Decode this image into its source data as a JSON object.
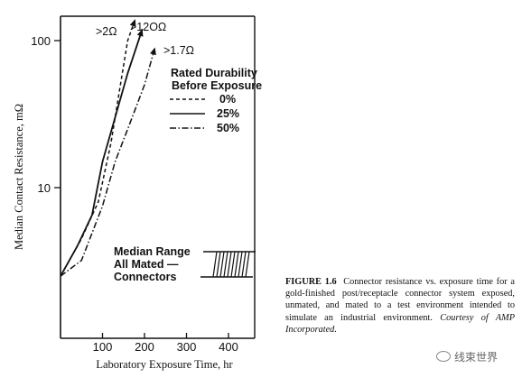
{
  "chart_data": {
    "type": "line",
    "ylabel": "Median Contact Resistance, mΩ",
    "xlabel": "Laboratory Exposure Time, hr",
    "yscale": "log",
    "xlim": [
      0,
      450
    ],
    "ylim": [
      1.9,
      150
    ],
    "x_ticks": [
      100,
      200,
      300,
      400
    ],
    "x_tick_labels": [
      "100",
      "200",
      "300",
      "400"
    ],
    "y_ticks": [
      10,
      100
    ],
    "y_tick_labels": [
      "10",
      "100"
    ],
    "grid": false,
    "legend_title_lines": [
      "Rated Durability",
      "Before Exposure"
    ],
    "legend_position": "top-right",
    "series": [
      {
        "name": "0%",
        "style": "dashed",
        "x": [
          0,
          50,
          90,
          120,
          145,
          160,
          178
        ],
        "y": [
          2.5,
          4.5,
          8,
          20,
          55,
          100,
          140
        ]
      },
      {
        "name": "25%",
        "style": "solid",
        "x": [
          0,
          40,
          75,
          100,
          130,
          160,
          195
        ],
        "y": [
          2.5,
          4,
          6.5,
          15,
          30,
          60,
          120
        ]
      },
      {
        "name": "50%",
        "style": "dashdot",
        "x": [
          0,
          50,
          100,
          130,
          160,
          200,
          225
        ],
        "y": [
          2.5,
          3.2,
          7.5,
          15,
          25,
          50,
          90
        ]
      }
    ],
    "annotations": [
      ">2Ω",
      ">12OΩ",
      ">1.7Ω"
    ],
    "inset_label": [
      "Median Range",
      "All Mated —",
      "Connectors"
    ]
  },
  "caption": {
    "label": "FIGURE 1.6",
    "text": "Connector resistance vs. exposure time for a gold-finished post/receptacle connector system exposed, unmated, and mated to a test environment intended to simulate an industrial environment.",
    "credit": "Courtesy of AMP Incorporated."
  },
  "watermark": {
    "text": "线束世界",
    "icon": "wechat-icon"
  }
}
